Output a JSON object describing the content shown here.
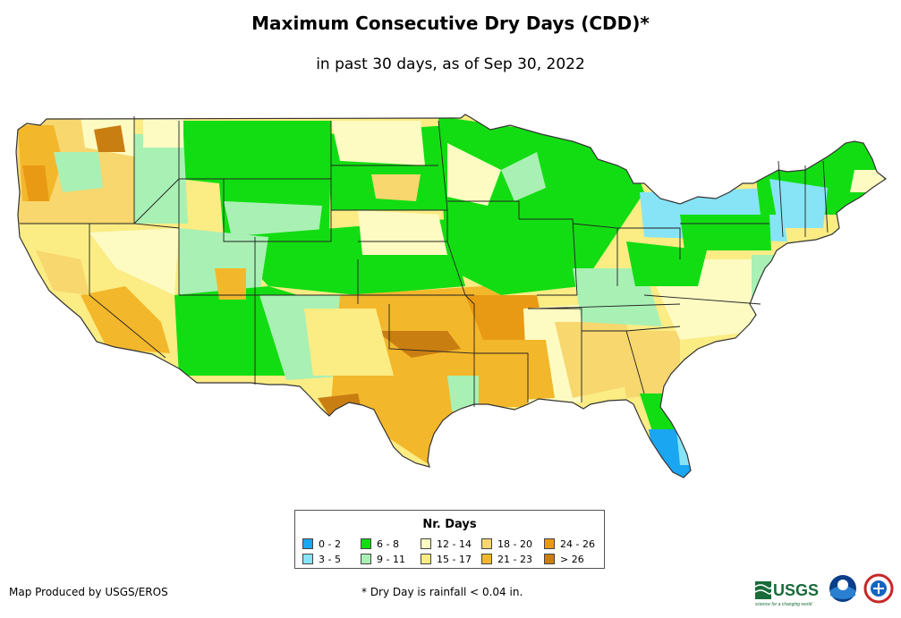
{
  "title": "Maximum Consecutive Dry Days (CDD)*",
  "subtitle": "in past 30 days, as of Sep 30, 2022",
  "legend": {
    "title": "Nr. Days",
    "items": [
      {
        "label": "0 - 2",
        "color": "#1aa6f0"
      },
      {
        "label": "3 - 5",
        "color": "#86e4f6"
      },
      {
        "label": "6 - 8",
        "color": "#12dd12"
      },
      {
        "label": "9 - 11",
        "color": "#a9f0b4"
      },
      {
        "label": "12 - 14",
        "color": "#fdfbc2"
      },
      {
        "label": "15 - 17",
        "color": "#fbec84"
      },
      {
        "label": "18 - 20",
        "color": "#f7d76e"
      },
      {
        "label": "21 - 23",
        "color": "#f3b72b"
      },
      {
        "label": "24 - 26",
        "color": "#e99a14"
      },
      {
        "label": "> 26",
        "color": "#c97e12"
      }
    ]
  },
  "footer": {
    "credit": "Map Produced by USGS/EROS",
    "note": "* Dry Day is rainfall < 0.04 in."
  },
  "logos": {
    "usgs_text": "USGS",
    "usgs_tagline": "science for a changing world"
  }
}
